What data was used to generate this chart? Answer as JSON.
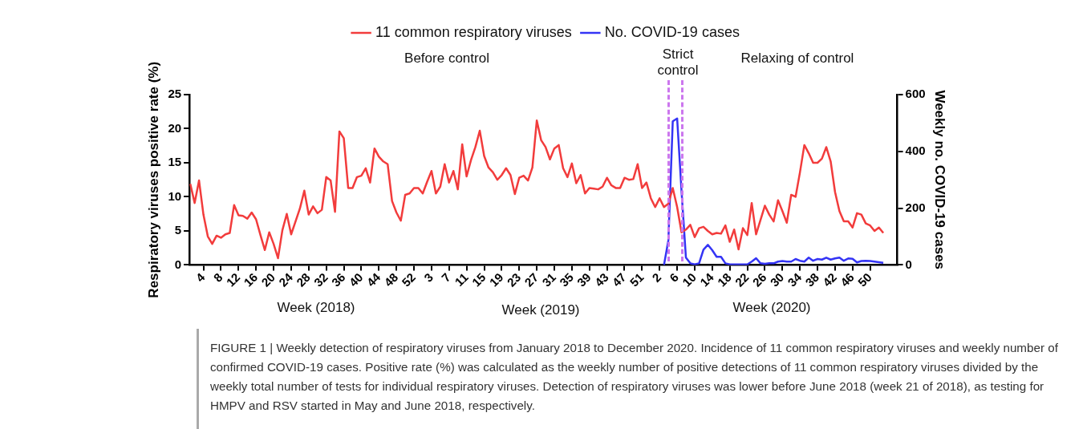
{
  "chart_data": {
    "type": "line",
    "ylabel": "Respiratory viruses positive rate (%)",
    "y2label": "Weekly no. COVID-19 cases",
    "annotations": [
      "Before control",
      "Strict control",
      "Relaxing of control",
      "Week (2018)",
      "Week (2019)",
      "Week (2020)",
      "FIGURE 1 | Weekly detection of respiratory viruses from January 2018 to December 2020. Incidence of 11 common respiratory viruses and weekly number of confirmed COVID-19 cases. Positive rate (%) was calculated as the weekly number of positive detections of 11 common respiratory viruses divided by the weekly total number of tests for individual respiratory viruses. Detection of respiratory viruses was lower before June 2018 (week 21 of 2018), as testing for HMPV and RSV started in May and June 2018, respectively."
    ],
    "categories": [
      null,
      null,
      null,
      "4",
      null,
      null,
      null,
      "8",
      null,
      null,
      null,
      "12",
      null,
      null,
      null,
      "16",
      null,
      null,
      null,
      "20",
      null,
      null,
      null,
      "24",
      null,
      null,
      null,
      "28",
      null,
      null,
      null,
      "32",
      null,
      null,
      null,
      "36",
      null,
      null,
      null,
      "40",
      null,
      null,
      null,
      "44",
      null,
      null,
      null,
      "48",
      null,
      null,
      null,
      "52",
      null,
      null,
      null,
      "3",
      null,
      null,
      null,
      "7",
      null,
      null,
      null,
      "11",
      null,
      null,
      null,
      "15",
      null,
      null,
      null,
      "19",
      null,
      null,
      null,
      "23",
      null,
      null,
      null,
      "27",
      null,
      null,
      null,
      "31",
      null,
      null,
      null,
      "35",
      null,
      null,
      null,
      "39",
      null,
      null,
      null,
      "43",
      null,
      null,
      null,
      "47",
      null,
      null,
      null,
      "51",
      null,
      null,
      null,
      "2",
      null,
      null,
      null,
      "6",
      null,
      null,
      null,
      "10",
      null,
      null,
      null,
      "14",
      null,
      null,
      null,
      "18",
      null,
      null,
      null,
      "22",
      null,
      null,
      null,
      "26",
      null,
      null,
      null,
      "30",
      null,
      null,
      null,
      "34",
      null,
      null,
      null,
      "38",
      null,
      null,
      null,
      "42",
      null,
      null,
      null,
      "46",
      null,
      null,
      null,
      "50",
      null,
      null,
      null
    ],
    "series": [
      {
        "name": "11 common respiratory viruses",
        "color": "#f23c3c",
        "values": [
          11.9,
          9.1,
          12.4,
          7.4,
          4.2,
          3.1,
          4.3,
          4.0,
          4.5,
          4.7,
          8.8,
          7.3,
          7.2,
          6.8,
          7.7,
          6.7,
          4.4,
          2.2,
          4.8,
          3.1,
          1.0,
          5.1,
          7.5,
          4.5,
          6.4,
          8.3,
          10.9,
          7.4,
          8.6,
          7.6,
          8.1,
          12.9,
          12.4,
          7.8,
          19.6,
          18.6,
          11.3,
          11.3,
          12.9,
          13.1,
          14.2,
          12.1,
          17.1,
          15.9,
          15.2,
          14.8,
          9.4,
          7.7,
          6.5,
          10.3,
          10.5,
          11.3,
          11.3,
          10.5,
          12.2,
          13.8,
          10.5,
          11.5,
          14.8,
          12.1,
          13.8,
          11.1,
          17.7,
          13.0,
          15.4,
          17.3,
          19.7,
          16.0,
          14.3,
          13.6,
          12.5,
          13.2,
          14.2,
          13.2,
          10.4,
          12.8,
          13.1,
          12.4,
          14.3,
          21.2,
          18.3,
          17.3,
          15.5,
          17.1,
          17.6,
          14.2,
          12.9,
          14.9,
          12.0,
          13.2,
          10.5,
          11.3,
          11.2,
          11.1,
          11.5,
          12.8,
          11.7,
          11.3,
          11.3,
          12.8,
          12.5,
          12.6,
          14.8,
          11.3,
          12.1,
          9.8,
          8.5,
          9.8,
          8.5,
          9.0,
          11.3,
          8.5,
          4.8,
          5.2,
          5.9,
          4.1,
          5.4,
          5.6,
          5.0,
          4.5,
          4.7,
          4.6,
          5.8,
          3.4,
          5.2,
          2.3,
          5.4,
          4.4,
          9.1,
          4.5,
          6.6,
          8.7,
          7.4,
          6.4,
          9.5,
          7.9,
          6.2,
          10.3,
          10.0,
          13.6,
          17.6,
          16.4,
          15.0,
          15.0,
          15.6,
          17.3,
          15.2,
          10.7,
          7.9,
          6.4,
          6.4,
          5.5,
          7.6,
          7.4,
          6.1,
          5.8,
          5.0,
          5.5,
          4.7
        ]
      },
      {
        "name": "No. COVID-19 cases",
        "color": "#3434f5",
        "axis": "y2",
        "values": [
          null,
          null,
          null,
          null,
          null,
          null,
          null,
          null,
          null,
          null,
          null,
          null,
          null,
          null,
          null,
          null,
          null,
          null,
          null,
          null,
          null,
          null,
          null,
          null,
          null,
          null,
          null,
          null,
          null,
          null,
          null,
          null,
          null,
          null,
          null,
          null,
          null,
          null,
          null,
          null,
          null,
          null,
          null,
          null,
          null,
          null,
          null,
          null,
          null,
          null,
          null,
          null,
          null,
          null,
          null,
          null,
          null,
          null,
          null,
          null,
          null,
          null,
          null,
          null,
          null,
          null,
          null,
          null,
          null,
          null,
          null,
          null,
          null,
          null,
          null,
          null,
          null,
          null,
          null,
          null,
          null,
          null,
          null,
          null,
          null,
          null,
          null,
          null,
          null,
          null,
          null,
          null,
          null,
          null,
          null,
          null,
          null,
          null,
          null,
          null,
          null,
          null,
          null,
          null,
          null,
          null,
          null,
          null,
          0,
          87,
          506,
          516,
          260,
          26,
          6,
          2,
          6,
          54,
          71,
          52,
          29,
          29,
          6,
          2,
          2,
          2,
          2,
          2,
          12,
          24,
          6,
          4,
          6,
          6,
          12,
          14,
          12,
          12,
          21,
          15,
          12,
          26,
          15,
          21,
          19,
          26,
          19,
          23,
          26,
          15,
          23,
          22,
          9,
          14,
          15,
          14,
          12,
          10,
          8
        ]
      }
    ],
    "ylim": [
      0,
      25
    ],
    "yticks": [
      0,
      5,
      10,
      15,
      20,
      25
    ],
    "y2lim": [
      0,
      600
    ],
    "y2ticks": [
      0,
      200,
      400,
      600
    ],
    "legend": "top",
    "marker": "none"
  }
}
